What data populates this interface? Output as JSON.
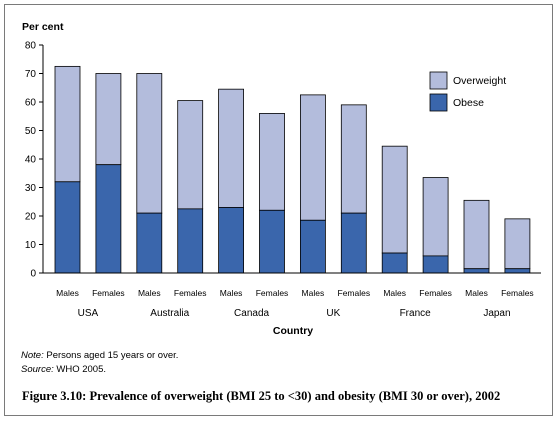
{
  "chart_data": {
    "type": "bar",
    "stacked": true,
    "ylabel": "Per cent",
    "xlabel": "Country",
    "ylim": [
      0,
      80
    ],
    "yticks": [
      0,
      10,
      20,
      30,
      40,
      50,
      60,
      70,
      80
    ],
    "groups": [
      "USA",
      "Australia",
      "Canada",
      "UK",
      "France",
      "Japan"
    ],
    "categories": [
      "Males",
      "Females",
      "Males",
      "Females",
      "Males",
      "Females",
      "Males",
      "Females",
      "Males",
      "Females",
      "Males",
      "Females"
    ],
    "series": [
      {
        "name": "Obese",
        "color": "#3a66ac",
        "values": [
          32,
          38,
          21,
          22.5,
          23,
          22,
          18.5,
          21,
          7,
          6,
          1.5,
          1.5
        ]
      },
      {
        "name": "Overweight",
        "color": "#b3bcdc",
        "values": [
          40.5,
          32,
          49,
          38,
          41.5,
          34,
          44,
          38,
          37.5,
          27.5,
          24,
          17.5
        ]
      }
    ],
    "legend_position": "top-right",
    "grid": false
  },
  "notes": {
    "note_label": "Note:",
    "note_text": " Persons aged 15 years or over.",
    "source_label": "Source:",
    "source_text": " WHO 2005."
  },
  "caption": "Figure 3.10: Prevalence of overweight (BMI 25 to <30) and obesity (BMI 30 or over), 2002"
}
